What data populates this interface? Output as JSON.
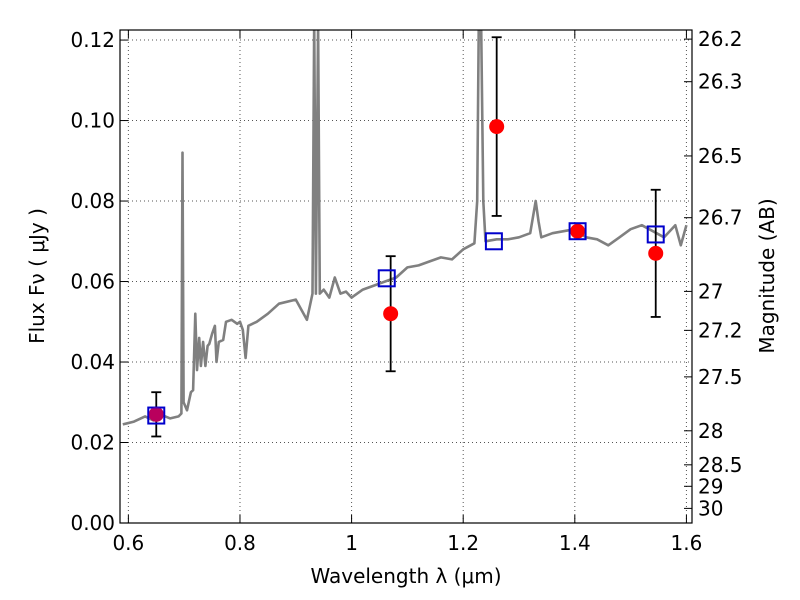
{
  "chart_data": {
    "type": "scatter",
    "xlabel": "Wavelength  λ (μm)",
    "ylabel": "Flux  Fν  ( μJy )",
    "y2label": "Magnitude (AB)",
    "xlim": [
      0.585,
      1.61
    ],
    "ylim": [
      0.0,
      0.1225
    ],
    "grid": true,
    "x_ticks": [
      {
        "value": 0.6,
        "label": "0.6"
      },
      {
        "value": 0.8,
        "label": "0.8"
      },
      {
        "value": 1.0,
        "label": "1"
      },
      {
        "value": 1.2,
        "label": "1.2"
      },
      {
        "value": 1.4,
        "label": "1.4"
      },
      {
        "value": 1.6,
        "label": "1.6"
      }
    ],
    "y_ticks": [
      {
        "value": 0.0,
        "label": "0.00"
      },
      {
        "value": 0.02,
        "label": "0.02"
      },
      {
        "value": 0.04,
        "label": "0.04"
      },
      {
        "value": 0.06,
        "label": "0.06"
      },
      {
        "value": 0.08,
        "label": "0.08"
      },
      {
        "value": 0.1,
        "label": "0.10"
      },
      {
        "value": 0.12,
        "label": "0.12"
      }
    ],
    "mag_ticks": [
      {
        "mag": 26.2,
        "label": "26.2"
      },
      {
        "mag": 26.3,
        "label": "26.3"
      },
      {
        "mag": 26.5,
        "label": "26.5"
      },
      {
        "mag": 26.7,
        "label": "26.7"
      },
      {
        "mag": 27.0,
        "label": "27"
      },
      {
        "mag": 27.2,
        "label": "27.2"
      },
      {
        "mag": 27.5,
        "label": "27.5"
      },
      {
        "mag": 28.0,
        "label": "28"
      },
      {
        "mag": 28.5,
        "label": "28.5"
      },
      {
        "mag": 29.0,
        "label": "29"
      },
      {
        "mag": 30.0,
        "label": "30"
      }
    ],
    "series": [
      {
        "kind": "line",
        "color": "#808080",
        "points": [
          [
            0.59,
            0.0245
          ],
          [
            0.61,
            0.0252
          ],
          [
            0.63,
            0.0265
          ],
          [
            0.645,
            0.0255
          ],
          [
            0.66,
            0.0268
          ],
          [
            0.675,
            0.026
          ],
          [
            0.69,
            0.0265
          ],
          [
            0.695,
            0.0272
          ],
          [
            0.697,
            0.092
          ],
          [
            0.699,
            0.03
          ],
          [
            0.705,
            0.028
          ],
          [
            0.712,
            0.0325
          ],
          [
            0.716,
            0.033
          ],
          [
            0.72,
            0.052
          ],
          [
            0.723,
            0.038
          ],
          [
            0.727,
            0.046
          ],
          [
            0.73,
            0.039
          ],
          [
            0.734,
            0.045
          ],
          [
            0.738,
            0.039
          ],
          [
            0.742,
            0.044
          ],
          [
            0.745,
            0.0445
          ],
          [
            0.75,
            0.047
          ],
          [
            0.755,
            0.049
          ],
          [
            0.758,
            0.04
          ],
          [
            0.762,
            0.045
          ],
          [
            0.77,
            0.0455
          ],
          [
            0.775,
            0.05
          ],
          [
            0.785,
            0.0505
          ],
          [
            0.795,
            0.0495
          ],
          [
            0.8,
            0.05
          ],
          [
            0.805,
            0.048
          ],
          [
            0.81,
            0.041
          ],
          [
            0.815,
            0.049
          ],
          [
            0.83,
            0.05
          ],
          [
            0.85,
            0.052
          ],
          [
            0.87,
            0.0545
          ],
          [
            0.9,
            0.0555
          ],
          [
            0.92,
            0.0505
          ],
          [
            0.93,
            0.057
          ],
          [
            0.933,
            0.125
          ],
          [
            0.936,
            0.057
          ],
          [
            0.94,
            0.124
          ],
          [
            0.943,
            0.057
          ],
          [
            0.95,
            0.058
          ],
          [
            0.96,
            0.056
          ],
          [
            0.97,
            0.061
          ],
          [
            0.98,
            0.057
          ],
          [
            0.99,
            0.0575
          ],
          [
            1.0,
            0.056
          ],
          [
            1.02,
            0.058
          ],
          [
            1.04,
            0.059
          ],
          [
            1.06,
            0.06
          ],
          [
            1.08,
            0.061
          ],
          [
            1.1,
            0.0635
          ],
          [
            1.12,
            0.064
          ],
          [
            1.14,
            0.065
          ],
          [
            1.16,
            0.066
          ],
          [
            1.18,
            0.0655
          ],
          [
            1.2,
            0.068
          ],
          [
            1.22,
            0.0695
          ],
          [
            1.225,
            0.08
          ],
          [
            1.228,
            0.125
          ],
          [
            1.232,
            0.125
          ],
          [
            1.236,
            0.08
          ],
          [
            1.24,
            0.07
          ],
          [
            1.26,
            0.0705
          ],
          [
            1.28,
            0.0705
          ],
          [
            1.3,
            0.071
          ],
          [
            1.32,
            0.072
          ],
          [
            1.33,
            0.08
          ],
          [
            1.335,
            0.075
          ],
          [
            1.34,
            0.071
          ],
          [
            1.36,
            0.072
          ],
          [
            1.38,
            0.0725
          ],
          [
            1.4,
            0.073
          ],
          [
            1.42,
            0.071
          ],
          [
            1.44,
            0.0705
          ],
          [
            1.46,
            0.069
          ],
          [
            1.48,
            0.071
          ],
          [
            1.5,
            0.073
          ],
          [
            1.52,
            0.074
          ],
          [
            1.54,
            0.0725
          ],
          [
            1.56,
            0.071
          ],
          [
            1.58,
            0.074
          ],
          [
            1.59,
            0.069
          ],
          [
            1.6,
            0.074
          ]
        ]
      },
      {
        "kind": "scatter",
        "marker": "circle",
        "color": "#ff0000",
        "points": [
          {
            "x": 0.65,
            "y": 0.027,
            "err": 0.0055
          },
          {
            "x": 1.07,
            "y": 0.052,
            "err": 0.0143
          },
          {
            "x": 1.26,
            "y": 0.0985,
            "err": 0.0222
          },
          {
            "x": 1.405,
            "y": 0.0725,
            "err": 0.0
          },
          {
            "x": 1.545,
            "y": 0.067,
            "err": 0.0158
          }
        ]
      },
      {
        "kind": "scatter",
        "marker": "open-square",
        "color": "#0000cc",
        "points": [
          {
            "x": 0.65,
            "y": 0.0267
          },
          {
            "x": 1.063,
            "y": 0.0608
          },
          {
            "x": 1.255,
            "y": 0.07
          },
          {
            "x": 1.405,
            "y": 0.0725
          },
          {
            "x": 1.545,
            "y": 0.0717
          }
        ]
      }
    ]
  },
  "colors": {
    "spectrum": "#808080",
    "photometry": "#ff0000",
    "model": "#0000cc",
    "errorbar": "#000000",
    "grid": "#555555"
  }
}
